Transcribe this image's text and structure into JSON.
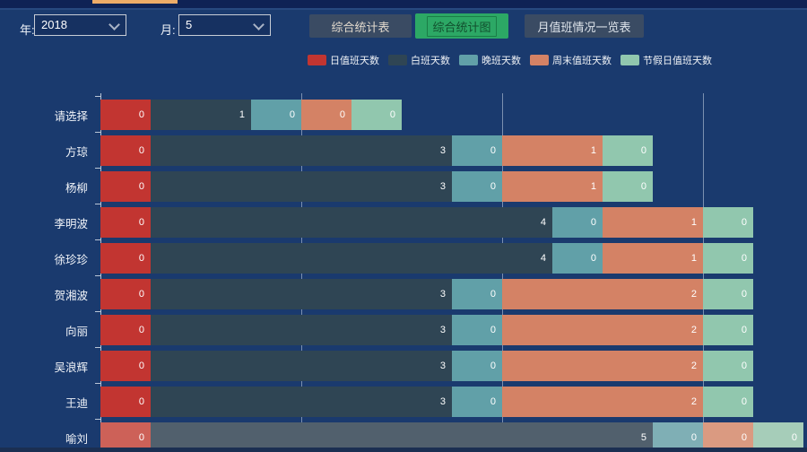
{
  "topbar": {
    "tab_indicator_color": "#eeac68"
  },
  "controls": {
    "year_label": "年:",
    "year_value": "2018",
    "month_label": "月:",
    "month_value": "5",
    "buttons": [
      {
        "label": "综合统计表",
        "active": false
      },
      {
        "label": "综合统计图",
        "active": true
      },
      {
        "label": "月值班情况一览表",
        "active": false
      }
    ],
    "active_button_color": "#2ca865"
  },
  "chart_data": {
    "type": "bar",
    "orientation": "horizontal",
    "stacked": true,
    "title": "",
    "xlabel": "",
    "ylabel": "",
    "categories": [
      "请选择",
      "方琼",
      "杨柳",
      "李明波",
      "徐珍珍",
      "贺湘波",
      "向丽",
      "吴浪辉",
      "王迪",
      "喻刘"
    ],
    "series": [
      {
        "name": "日值班天数",
        "color": "#c23531",
        "color_dim": "#cd6158",
        "values": [
          0,
          0,
          0,
          0,
          0,
          0,
          0,
          0,
          0,
          0
        ]
      },
      {
        "name": "白班天数",
        "color": "#2f4554",
        "color_dim": "#51606d",
        "values": [
          1,
          3,
          3,
          4,
          4,
          3,
          3,
          3,
          3,
          5
        ]
      },
      {
        "name": "晚班天数",
        "color": "#61a0a8",
        "color_dim": "#7fafb5",
        "values": [
          0,
          0,
          0,
          0,
          0,
          0,
          0,
          0,
          0,
          0
        ]
      },
      {
        "name": "周末值班天数",
        "color": "#d48265",
        "color_dim": "#da9a81",
        "values": [
          0,
          1,
          1,
          1,
          1,
          2,
          2,
          2,
          2,
          0
        ]
      },
      {
        "name": "节假日值班天数",
        "color": "#91c7ae",
        "color_dim": "#a6cdb9",
        "values": [
          0,
          0,
          0,
          0,
          0,
          0,
          0,
          0,
          0,
          0
        ]
      }
    ],
    "x_gridline_values": [
      2,
      4,
      6
    ],
    "xlim": [
      0,
      7
    ],
    "zero_value_segment_units": 0.5,
    "legend_position": "top",
    "dimmed_category_index": 9,
    "value_labels": "inside-right"
  }
}
